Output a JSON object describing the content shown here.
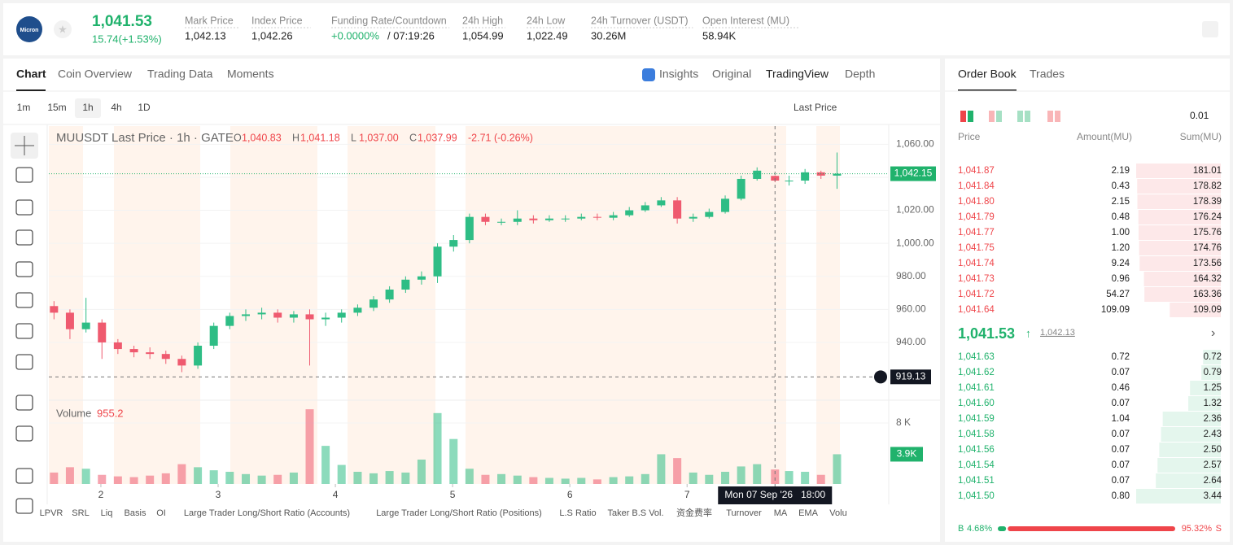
{
  "header": {
    "logo": "Micron",
    "price": "1,041.53",
    "change": "15.74(+1.53%)",
    "stats": [
      {
        "label": "Mark Price",
        "value": "1,042.13"
      },
      {
        "label": "Index Price",
        "value": "1,042.26"
      },
      {
        "label": "Funding Rate/Countdown",
        "value": "+0.0000%",
        "extra": "/ 07:19:26"
      },
      {
        "label": "24h High",
        "value": "1,054.99"
      },
      {
        "label": "24h Low",
        "value": "1,022.49"
      },
      {
        "label": "24h Turnover (USDT)",
        "value": "30.26M"
      },
      {
        "label": "Open Interest (MU)",
        "value": "58.94K"
      }
    ]
  },
  "tabs": [
    "Chart",
    "Coin Overview",
    "Trading Data",
    "Moments"
  ],
  "views": [
    "Insights",
    "Original",
    "TradingView",
    "Depth"
  ],
  "intervals": [
    "1m",
    "15m",
    "1h",
    "4h",
    "1D"
  ],
  "price_source": "Last Price",
  "legend": {
    "symbol": "MUUSDT Last Price · 1h · GATE",
    "ohlc": [
      {
        "key": "O",
        "value": "1,040.83"
      },
      {
        "key": "H",
        "value": "1,041.18"
      },
      {
        "key": "L",
        "value": "1,037.00"
      },
      {
        "key": "C",
        "value": "1,037.99"
      }
    ],
    "change": "-2.71 (-0.26%)"
  },
  "chart_data": {
    "type": "candlestick",
    "x": [
      1.6,
      1.736,
      1.873,
      2.009,
      2.145,
      2.282,
      2.418,
      2.554,
      2.69,
      2.827,
      2.963,
      3.099,
      3.236,
      3.372,
      3.508,
      3.645,
      3.781,
      3.917,
      4.053,
      4.19,
      4.326,
      4.462,
      4.599,
      4.735,
      4.871,
      5.008,
      5.144,
      5.28,
      5.416,
      5.553,
      5.689,
      5.825,
      5.962,
      6.098,
      6.234,
      6.371,
      6.507,
      6.643,
      6.779,
      6.916,
      7.052,
      7.188,
      7.325,
      7.461,
      7.597,
      7.75,
      7.87,
      8.006,
      8.142,
      8.279
    ],
    "open": [
      962,
      958,
      948,
      952,
      940,
      936,
      934,
      933,
      930,
      926,
      938,
      950,
      956,
      957,
      958,
      955,
      957,
      954,
      955,
      958,
      961,
      966,
      972,
      978,
      980,
      998,
      1002,
      1016,
      1013,
      1013,
      1015,
      1014,
      1015,
      1015,
      1016,
      1015.5,
      1017,
      1020,
      1023,
      1026,
      1015,
      1016,
      1019,
      1027,
      1039,
      1040.83,
      1037.99,
      1038,
      1043,
      1041
    ],
    "high": [
      965,
      960,
      967,
      954,
      942,
      938,
      937,
      935,
      932,
      940,
      952,
      958,
      960,
      961,
      960,
      959,
      960,
      958,
      960,
      963,
      968,
      974,
      980,
      983,
      1000,
      1005,
      1018,
      1018,
      1015,
      1020,
      1017,
      1017,
      1017,
      1018,
      1018,
      1019,
      1022,
      1025,
      1028,
      1028,
      1018,
      1021,
      1029,
      1041,
      1046,
      1041.18,
      1041,
      1045,
      1044,
      1055
    ],
    "low": [
      954,
      942,
      946,
      930,
      933,
      931,
      930,
      927,
      922,
      924,
      936,
      948,
      953,
      954,
      952,
      952,
      926,
      950,
      952,
      956,
      959,
      964,
      970,
      975,
      976,
      995,
      1000,
      1011,
      1011,
      1011,
      1012,
      1013,
      1013,
      1014,
      1014,
      1014,
      1016,
      1019,
      1022,
      1012,
      1013,
      1015,
      1018,
      1026,
      1038,
      1037,
      1035,
      1036,
      1039,
      1033
    ],
    "close": [
      958,
      948,
      952,
      940,
      936,
      934,
      933,
      930,
      926,
      938,
      950,
      956,
      957,
      958,
      955,
      957,
      954,
      955,
      958,
      961,
      966,
      972,
      978,
      980,
      998,
      1002,
      1016,
      1013,
      1013,
      1015,
      1014,
      1015,
      1015,
      1016,
      1015.5,
      1017,
      1020,
      1023,
      1026,
      1015,
      1016,
      1019,
      1027,
      1039,
      1044,
      1037.99,
      1038,
      1043,
      1041,
      1042.15
    ],
    "xlim": [
      1.556,
      8.72
    ],
    "xticks": [
      2,
      3,
      4,
      5,
      6,
      7
    ],
    "ylim": [
      905,
      1071
    ],
    "yticks": [
      {
        "value": 940,
        "label": "940.00"
      },
      {
        "value": 960,
        "label": "960.00"
      },
      {
        "value": 980,
        "label": "980.00"
      },
      {
        "value": 1000,
        "label": "1,000.00"
      },
      {
        "value": 1020,
        "label": "1,020.00"
      },
      {
        "value": 1040,
        "label": "1,040.00"
      },
      {
        "value": 1060,
        "label": "1,060.00"
      }
    ],
    "up_color": "#2ebd85",
    "down_color": "#ef5a6f",
    "last_price": {
      "value": 1042.15,
      "label": "1,042.15"
    },
    "crosshair": {
      "y": {
        "value": 919.13,
        "label": "919.13"
      },
      "x": {
        "value": 7.75,
        "label": "Mon 07 Sep '26   18:00"
      }
    },
    "volume": {
      "label": "Volume",
      "current": "955.2",
      "values": [
        1500,
        2200,
        2000,
        1200,
        1000,
        900,
        1100,
        1400,
        2600,
        2200,
        1800,
        1600,
        1300,
        1100,
        1200,
        1500,
        9800,
        5000,
        2500,
        1600,
        1400,
        1700,
        1500,
        3200,
        9300,
        5900,
        2000,
        1200,
        1300,
        1100,
        900,
        800,
        700,
        800,
        600,
        900,
        1000,
        1300,
        3900,
        3400,
        1500,
        1200,
        1600,
        2300,
        2600,
        1900,
        1700,
        1600,
        1200,
        3900
      ],
      "ylim": [
        0,
        10880
      ],
      "yticks": [
        {
          "value": 8000,
          "label": "8 K"
        }
      ],
      "last": {
        "value": 3900,
        "label": "3.9K"
      }
    }
  },
  "indicators": [
    "LPVR",
    "SRL",
    "Liq",
    "Basis",
    "OI",
    "Large Trader Long/Short Ratio (Accounts)",
    "Large Trader Long/Short Ratio (Positions)",
    "L.S Ratio",
    "Taker B.S Vol.",
    "资金费率",
    "Turnover",
    "MA",
    "EMA",
    "Volu"
  ],
  "order_book": {
    "tabs": [
      "Order Book",
      "Trades"
    ],
    "precision": "0.01",
    "columns": [
      "Price",
      "Amount(MU)",
      "Sum(MU)"
    ],
    "asks": [
      [
        "1,041.87",
        "2.19",
        "181.01"
      ],
      [
        "1,041.84",
        "0.43",
        "178.82"
      ],
      [
        "1,041.80",
        "2.15",
        "178.39"
      ],
      [
        "1,041.79",
        "0.48",
        "176.24"
      ],
      [
        "1,041.77",
        "1.00",
        "175.76"
      ],
      [
        "1,041.75",
        "1.20",
        "174.76"
      ],
      [
        "1,041.74",
        "9.24",
        "173.56"
      ],
      [
        "1,041.73",
        "0.96",
        "164.32"
      ],
      [
        "1,041.72",
        "54.27",
        "163.36"
      ],
      [
        "1,041.64",
        "109.09",
        "109.09"
      ]
    ],
    "mid": {
      "price": "1,041.53",
      "mark": "1,042.13"
    },
    "bids": [
      [
        "1,041.63",
        "0.72",
        "0.72"
      ],
      [
        "1,041.62",
        "0.07",
        "0.79"
      ],
      [
        "1,041.61",
        "0.46",
        "1.25"
      ],
      [
        "1,041.60",
        "0.07",
        "1.32"
      ],
      [
        "1,041.59",
        "1.04",
        "2.36"
      ],
      [
        "1,041.58",
        "0.07",
        "2.43"
      ],
      [
        "1,041.56",
        "0.07",
        "2.50"
      ],
      [
        "1,041.54",
        "0.07",
        "2.57"
      ],
      [
        "1,041.51",
        "0.07",
        "2.64"
      ],
      [
        "1,041.50",
        "0.80",
        "3.44"
      ]
    ],
    "ratio": {
      "buy_key": "B",
      "buy": 4.68,
      "buy_text": "4.68%",
      "sell": 95.32,
      "sell_text": "95.32%",
      "sell_key": "S"
    }
  }
}
